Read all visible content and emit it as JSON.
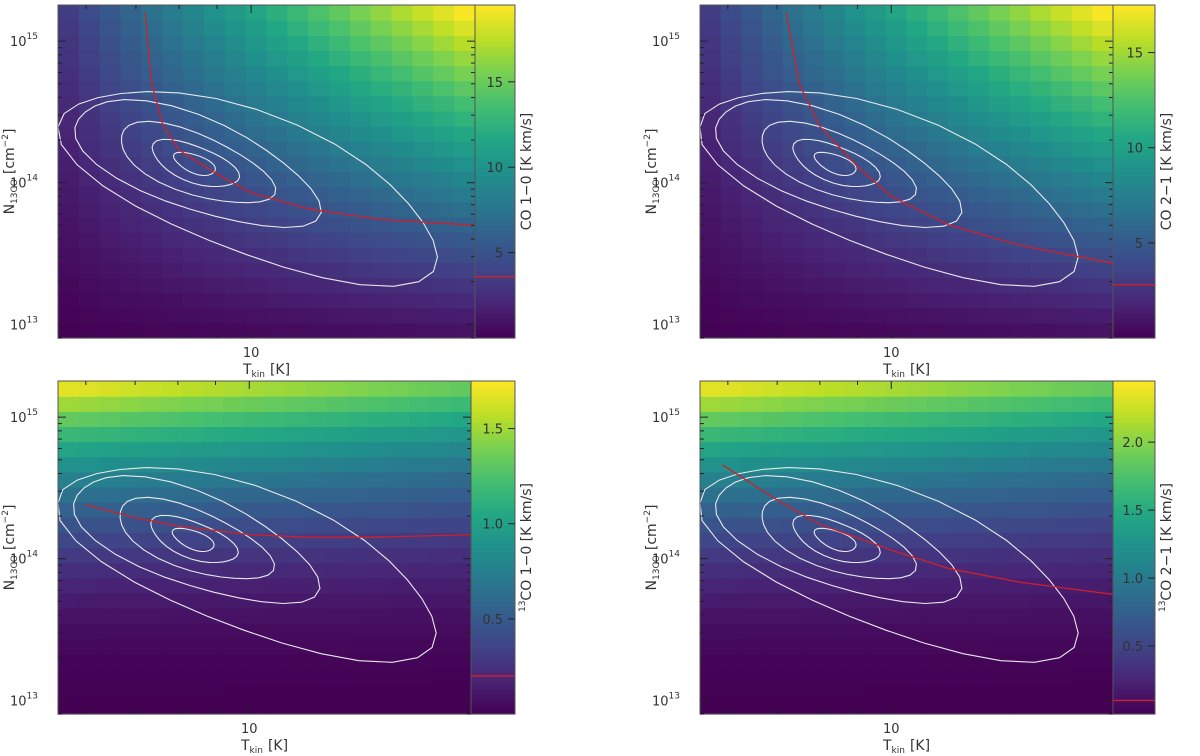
{
  "chart_data": [
    {
      "type": "heatmap",
      "panel": "top-left",
      "xlabel": "T",
      "xlabel_sub": "kin",
      "xlabel_unit": "[K]",
      "ylabel": "N",
      "ylabel_sub": "13CO",
      "ylabel_unit": "[cm",
      "ylabel_unit_sup": "−2",
      "ylabel_unit_end": "]",
      "xscale": "log",
      "yscale": "log",
      "xlim": [
        5.5,
        20
      ],
      "ylim": [
        8000000000000.0,
        1800000000000000.0
      ],
      "x_ticks": [
        {
          "value": 10,
          "label": "10"
        }
      ],
      "y_ticks": [
        {
          "value": 10000000000000.0,
          "base": "10",
          "exp": "13"
        },
        {
          "value": 100000000000000.0,
          "base": "10",
          "exp": "14"
        },
        {
          "value": 1000000000000000.0,
          "base": "10",
          "exp": "15"
        }
      ],
      "colorbar": {
        "label": "CO 1−0 [K km/s]",
        "label_prefix": "",
        "label_sup": "",
        "label_rest": "CO 1−0 [K km/s]",
        "min": 0,
        "max": 19.5,
        "ticks": [
          {
            "value": 5,
            "label": "5"
          },
          {
            "value": 10,
            "label": "10"
          },
          {
            "value": 15,
            "label": "15"
          }
        ],
        "observed": 3.6
      },
      "model_color": "B",
      "red_curve": [
        [
          7.2,
          1600000000000000.0
        ],
        [
          7.35,
          500000000000000.0
        ],
        [
          7.6,
          260000000000000.0
        ],
        [
          8,
          170000000000000.0
        ],
        [
          9,
          115000000000000.0
        ],
        [
          10,
          85000000000000.0
        ],
        [
          12,
          65000000000000.0
        ],
        [
          15,
          55000000000000.0
        ],
        [
          20,
          50000000000000.0
        ]
      ]
    },
    {
      "type": "heatmap",
      "panel": "top-right",
      "xlabel": "T",
      "xlabel_sub": "kin",
      "xlabel_unit": "[K]",
      "ylabel": "N",
      "ylabel_sub": "13CO",
      "ylabel_unit": "[cm",
      "ylabel_unit_sup": "−2",
      "ylabel_unit_end": "]",
      "xscale": "log",
      "yscale": "log",
      "xlim": [
        5.5,
        20
      ],
      "ylim": [
        8000000000000.0,
        1800000000000000.0
      ],
      "x_ticks": [
        {
          "value": 10,
          "label": "10"
        }
      ],
      "y_ticks": [
        {
          "value": 10000000000000.0,
          "base": "10",
          "exp": "13"
        },
        {
          "value": 100000000000000.0,
          "base": "10",
          "exp": "14"
        },
        {
          "value": 1000000000000000.0,
          "base": "10",
          "exp": "15"
        }
      ],
      "colorbar": {
        "label": "CO 2−1 [K km/s]",
        "label_prefix": "",
        "label_sup": "",
        "label_rest": "CO 2−1 [K km/s]",
        "min": 0,
        "max": 17.5,
        "ticks": [
          {
            "value": 5,
            "label": "5"
          },
          {
            "value": 10,
            "label": "10"
          },
          {
            "value": 15,
            "label": "15"
          }
        ],
        "observed": 2.8
      },
      "model_color": "B",
      "red_curve": [
        [
          7.2,
          1600000000000000.0
        ],
        [
          7.5,
          500000000000000.0
        ],
        [
          8,
          250000000000000.0
        ],
        [
          9,
          130000000000000.0
        ],
        [
          10,
          80000000000000.0
        ],
        [
          12,
          50000000000000.0
        ],
        [
          15,
          36000000000000.0
        ],
        [
          20,
          27000000000000.0
        ]
      ]
    },
    {
      "type": "heatmap",
      "panel": "bottom-left",
      "xlabel": "T",
      "xlabel_sub": "kin",
      "xlabel_unit": "[K]",
      "ylabel": "N",
      "ylabel_sub": "13CO",
      "ylabel_unit": "[cm",
      "ylabel_unit_sup": "−2",
      "ylabel_unit_end": "]",
      "xscale": "log",
      "yscale": "log",
      "xlim": [
        5.5,
        20
      ],
      "ylim": [
        8000000000000.0,
        1800000000000000.0
      ],
      "x_ticks": [
        {
          "value": 10,
          "label": "10"
        }
      ],
      "y_ticks": [
        {
          "value": 10000000000000.0,
          "base": "10",
          "exp": "13"
        },
        {
          "value": 100000000000000.0,
          "base": "10",
          "exp": "14"
        },
        {
          "value": 1000000000000000.0,
          "base": "10",
          "exp": "15"
        }
      ],
      "colorbar": {
        "label": "13CO 1−0 [K km/s]",
        "label_prefix": "",
        "label_sup": "13",
        "label_rest": "CO 1−0 [K km/s]",
        "min": 0,
        "max": 1.75,
        "ticks": [
          {
            "value": 0.5,
            "label": "0.5"
          },
          {
            "value": 1.0,
            "label": "1.0"
          },
          {
            "value": 1.5,
            "label": "1.5"
          }
        ],
        "observed": 0.2
      },
      "model_color": "A",
      "red_curve": [
        [
          6,
          240000000000000.0
        ],
        [
          7,
          195000000000000.0
        ],
        [
          8,
          170000000000000.0
        ],
        [
          10,
          148000000000000.0
        ],
        [
          12,
          142000000000000.0
        ],
        [
          15,
          142000000000000.0
        ],
        [
          20,
          148000000000000.0
        ]
      ]
    },
    {
      "type": "heatmap",
      "panel": "bottom-right",
      "xlabel": "T",
      "xlabel_sub": "kin",
      "xlabel_unit": "[K]",
      "ylabel": "N",
      "ylabel_sub": "13CO",
      "ylabel_unit": "[cm",
      "ylabel_unit_sup": "−2",
      "ylabel_unit_end": "]",
      "xscale": "log",
      "yscale": "log",
      "xlim": [
        5.5,
        20
      ],
      "ylim": [
        8000000000000.0,
        1800000000000000.0
      ],
      "x_ticks": [
        {
          "value": 10,
          "label": "10"
        }
      ],
      "y_ticks": [
        {
          "value": 10000000000000.0,
          "base": "10",
          "exp": "13"
        },
        {
          "value": 100000000000000.0,
          "base": "10",
          "exp": "14"
        },
        {
          "value": 1000000000000000.0,
          "base": "10",
          "exp": "15"
        }
      ],
      "colorbar": {
        "label": "13CO 2−1 [K km/s]",
        "label_prefix": "",
        "label_sup": "13",
        "label_rest": "CO 2−1 [K km/s]",
        "min": 0,
        "max": 2.45,
        "ticks": [
          {
            "value": 0.5,
            "label": "0.5"
          },
          {
            "value": 1.0,
            "label": "1.0"
          },
          {
            "value": 1.5,
            "label": "1.5"
          },
          {
            "value": 2.0,
            "label": "2.0"
          }
        ],
        "observed": 0.1
      },
      "model_color": "A",
      "red_curve": [
        [
          5.9,
          460000000000000.0
        ],
        [
          7,
          260000000000000.0
        ],
        [
          8,
          175000000000000.0
        ],
        [
          10,
          115000000000000.0
        ],
        [
          12,
          85000000000000.0
        ],
        [
          15,
          68000000000000.0
        ],
        [
          20,
          56000000000000.0
        ]
      ]
    }
  ],
  "contours": {
    "center": [
      8.4,
      136000000000000.0
    ],
    "levels": [
      1,
      2,
      3,
      4,
      5
    ]
  },
  "colors": {
    "colormap": "viridis",
    "contour": "#e8e8ee",
    "model_curve": "#d0202a",
    "observed_marker": "#d0202a",
    "axis": "#555555"
  }
}
